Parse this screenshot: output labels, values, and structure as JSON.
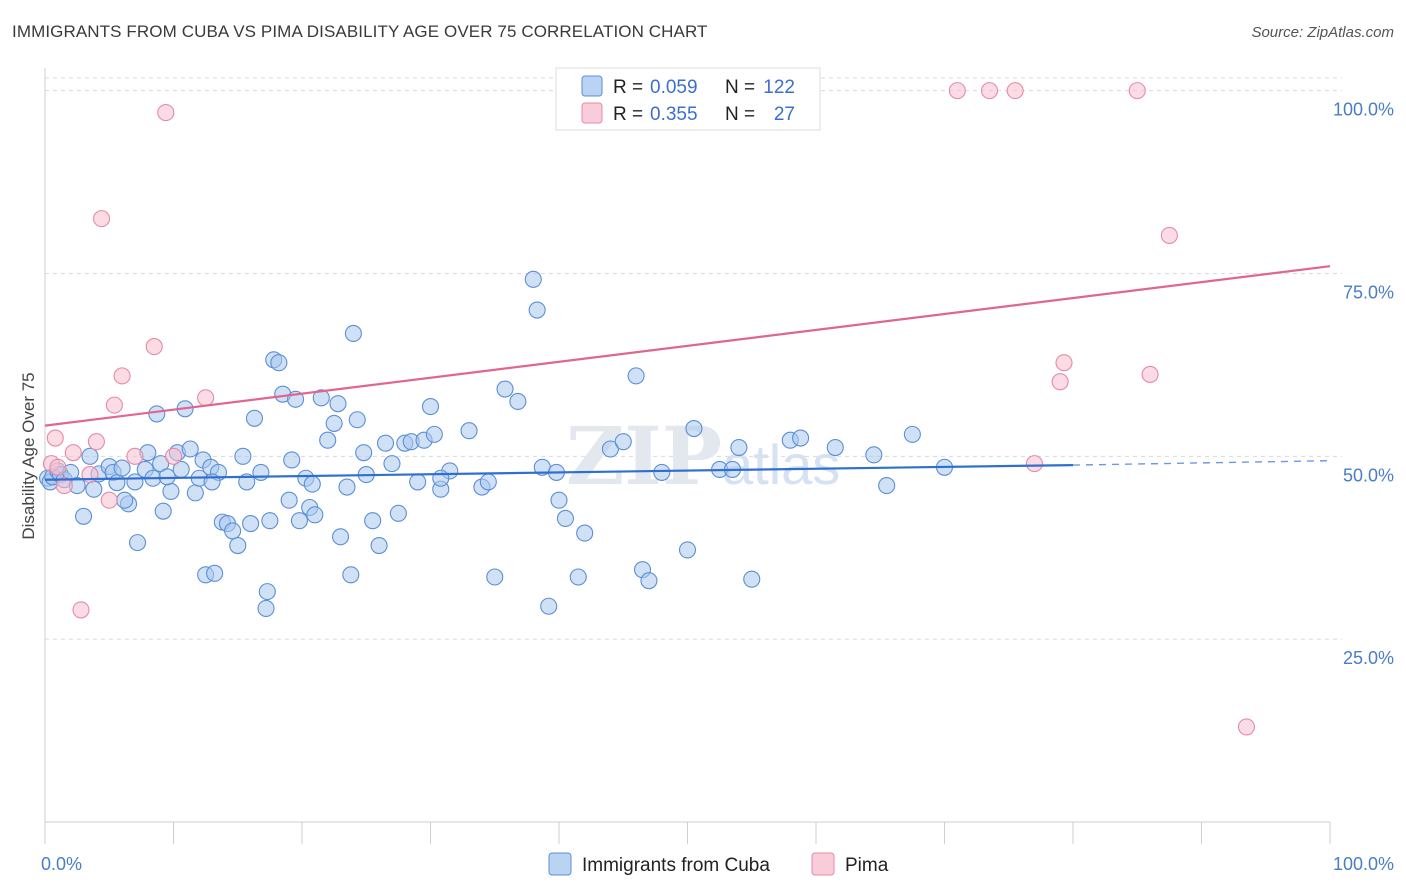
{
  "title": "IMMIGRANTS FROM CUBA VS PIMA DISABILITY AGE OVER 75 CORRELATION CHART",
  "source": "Source: ZipAtlas.com",
  "watermark": {
    "zip": "ZIP",
    "atlas": "atlas"
  },
  "legend": [
    {
      "r_label": "R =",
      "r_value": "0.059",
      "n_label": "N =",
      "n_value": "122"
    },
    {
      "r_label": "R =",
      "r_value": "0.355",
      "n_label": "N =",
      "n_value": "27"
    }
  ],
  "colors": {
    "cuba_fill": "#aac8ef",
    "cuba_stroke": "#5b8fd6",
    "cuba_line": "#2f6fd1",
    "pima_fill": "#f7bfd0",
    "pima_stroke": "#e58aa8",
    "pima_line": "#e0668f",
    "grid": "#dadada",
    "tick_text": "#4a7cc9"
  },
  "chart_data": {
    "type": "scatter",
    "ylabel": "Disability Age Over 75",
    "xlabel": "",
    "xlim": [
      0,
      100
    ],
    "ylim": [
      0,
      102
    ],
    "x_tick_labels": [
      "0.0%",
      "100.0%"
    ],
    "y_ticks": [
      {
        "value": 25,
        "label": "25.0%"
      },
      {
        "value": 50,
        "label": "50.0%"
      },
      {
        "value": 75,
        "label": "75.0%"
      },
      {
        "value": 100,
        "label": "100.0%"
      }
    ],
    "series": [
      {
        "name": "Immigrants from Cuba",
        "trend": {
          "x0": 0,
          "y0": 46.8,
          "x1": 80,
          "y1": 48.8,
          "dashed_to_x": 100,
          "dashed_to_y": 49.4
        },
        "points": [
          [
            0.2,
            47
          ],
          [
            0.4,
            46.5
          ],
          [
            0.6,
            47.2
          ],
          [
            1.0,
            48
          ],
          [
            1.2,
            47.5
          ],
          [
            1.5,
            46.8
          ],
          [
            2.0,
            47.8
          ],
          [
            2.5,
            46
          ],
          [
            3.0,
            41.8
          ],
          [
            3.5,
            50
          ],
          [
            3.8,
            45.5
          ],
          [
            4.2,
            47.6
          ],
          [
            5.0,
            48.6
          ],
          [
            5.3,
            47.8
          ],
          [
            5.6,
            46.4
          ],
          [
            6.0,
            48.4
          ],
          [
            6.5,
            43.5
          ],
          [
            7.0,
            46.5
          ],
          [
            7.2,
            38.2
          ],
          [
            7.8,
            48.2
          ],
          [
            8.0,
            50.5
          ],
          [
            8.4,
            47
          ],
          [
            8.7,
            55.8
          ],
          [
            9.0,
            49
          ],
          [
            9.2,
            42.5
          ],
          [
            9.8,
            45.2
          ],
          [
            10.3,
            50.5
          ],
          [
            10.6,
            48.2
          ],
          [
            10.9,
            56.5
          ],
          [
            11.3,
            51
          ],
          [
            11.7,
            45
          ],
          [
            12.0,
            47
          ],
          [
            12.3,
            49.5
          ],
          [
            12.5,
            33.8
          ],
          [
            12.9,
            48.5
          ],
          [
            13.2,
            34
          ],
          [
            13.5,
            47.8
          ],
          [
            13.8,
            41
          ],
          [
            14.2,
            40.8
          ],
          [
            14.6,
            39.8
          ],
          [
            15.0,
            37.8
          ],
          [
            15.4,
            50
          ],
          [
            15.7,
            46.5
          ],
          [
            16.0,
            40.8
          ],
          [
            16.3,
            55.2
          ],
          [
            16.8,
            47.8
          ],
          [
            17.3,
            31.5
          ],
          [
            17.5,
            41.2
          ],
          [
            17.2,
            29.2
          ],
          [
            17.8,
            63.2
          ],
          [
            18.2,
            62.8
          ],
          [
            18.5,
            58.5
          ],
          [
            19.0,
            44
          ],
          [
            19.2,
            49.5
          ],
          [
            19.5,
            57.8
          ],
          [
            19.8,
            41.2
          ],
          [
            20.3,
            47
          ],
          [
            20.8,
            46.2
          ],
          [
            20.6,
            43
          ],
          [
            21.0,
            42
          ],
          [
            21.5,
            58
          ],
          [
            22.0,
            52.2
          ],
          [
            22.5,
            54.5
          ],
          [
            22.8,
            57.2
          ],
          [
            23.0,
            39
          ],
          [
            23.5,
            45.8
          ],
          [
            23.8,
            33.8
          ],
          [
            24.0,
            66.8
          ],
          [
            24.3,
            55
          ],
          [
            24.8,
            50.5
          ],
          [
            25.5,
            41.2
          ],
          [
            26.0,
            37.8
          ],
          [
            26.5,
            51.8
          ],
          [
            27.0,
            49
          ],
          [
            27.5,
            42.2
          ],
          [
            28.0,
            51.8
          ],
          [
            28.5,
            52
          ],
          [
            29.0,
            46.5
          ],
          [
            29.5,
            52.2
          ],
          [
            30.0,
            56.8
          ],
          [
            30.3,
            53
          ],
          [
            30.8,
            45.5
          ],
          [
            31.5,
            48
          ],
          [
            33.0,
            53.5
          ],
          [
            34.0,
            45.8
          ],
          [
            34.5,
            46.5
          ],
          [
            35.0,
            33.5
          ],
          [
            35.8,
            59.2
          ],
          [
            36.8,
            57.5
          ],
          [
            38.0,
            74.2
          ],
          [
            38.3,
            70
          ],
          [
            38.7,
            48.5
          ],
          [
            39.2,
            29.5
          ],
          [
            39.8,
            47.8
          ],
          [
            40.0,
            44
          ],
          [
            40.5,
            41.5
          ],
          [
            41.5,
            33.5
          ],
          [
            42.0,
            39.5
          ],
          [
            44.0,
            51
          ],
          [
            45.0,
            52
          ],
          [
            46.0,
            61
          ],
          [
            46.5,
            34.5
          ],
          [
            47.0,
            33
          ],
          [
            48.0,
            47.8
          ],
          [
            50.0,
            37.2
          ],
          [
            50.5,
            53.8
          ],
          [
            52.5,
            48.2
          ],
          [
            53.5,
            48.2
          ],
          [
            54.0,
            51.2
          ],
          [
            55.0,
            33.2
          ],
          [
            58.0,
            52.2
          ],
          [
            61.5,
            51.2
          ],
          [
            64.5,
            50.2
          ],
          [
            65.5,
            46
          ],
          [
            67.5,
            53
          ],
          [
            70.0,
            48.5
          ],
          [
            58.8,
            52.5
          ],
          [
            30.8,
            47
          ],
          [
            25.0,
            47.5
          ],
          [
            13.0,
            46.5
          ],
          [
            9.5,
            47.2
          ],
          [
            6.2,
            44
          ]
        ]
      },
      {
        "name": "Pima",
        "trend": {
          "x0": 0,
          "y0": 54.2,
          "x1": 100,
          "y1": 76.0
        },
        "points": [
          [
            0.5,
            49
          ],
          [
            0.8,
            52.5
          ],
          [
            1.0,
            48.5
          ],
          [
            1.5,
            46
          ],
          [
            2.2,
            50.5
          ],
          [
            2.8,
            29
          ],
          [
            3.5,
            47.5
          ],
          [
            4.0,
            52
          ],
          [
            4.4,
            82.5
          ],
          [
            5.0,
            44
          ],
          [
            5.4,
            57
          ],
          [
            6.0,
            61
          ],
          [
            7.0,
            50
          ],
          [
            8.5,
            65
          ],
          [
            9.4,
            97
          ],
          [
            10.0,
            50
          ],
          [
            12.5,
            58
          ],
          [
            71,
            100
          ],
          [
            73.5,
            100
          ],
          [
            75.5,
            100
          ],
          [
            77,
            49
          ],
          [
            79,
            60.2
          ],
          [
            79.3,
            62.8
          ],
          [
            85,
            100
          ],
          [
            86,
            61.2
          ],
          [
            87.5,
            80.2
          ],
          [
            93.5,
            13
          ]
        ]
      }
    ],
    "bottom_legend": [
      "Immigrants from Cuba",
      "Pima"
    ]
  }
}
